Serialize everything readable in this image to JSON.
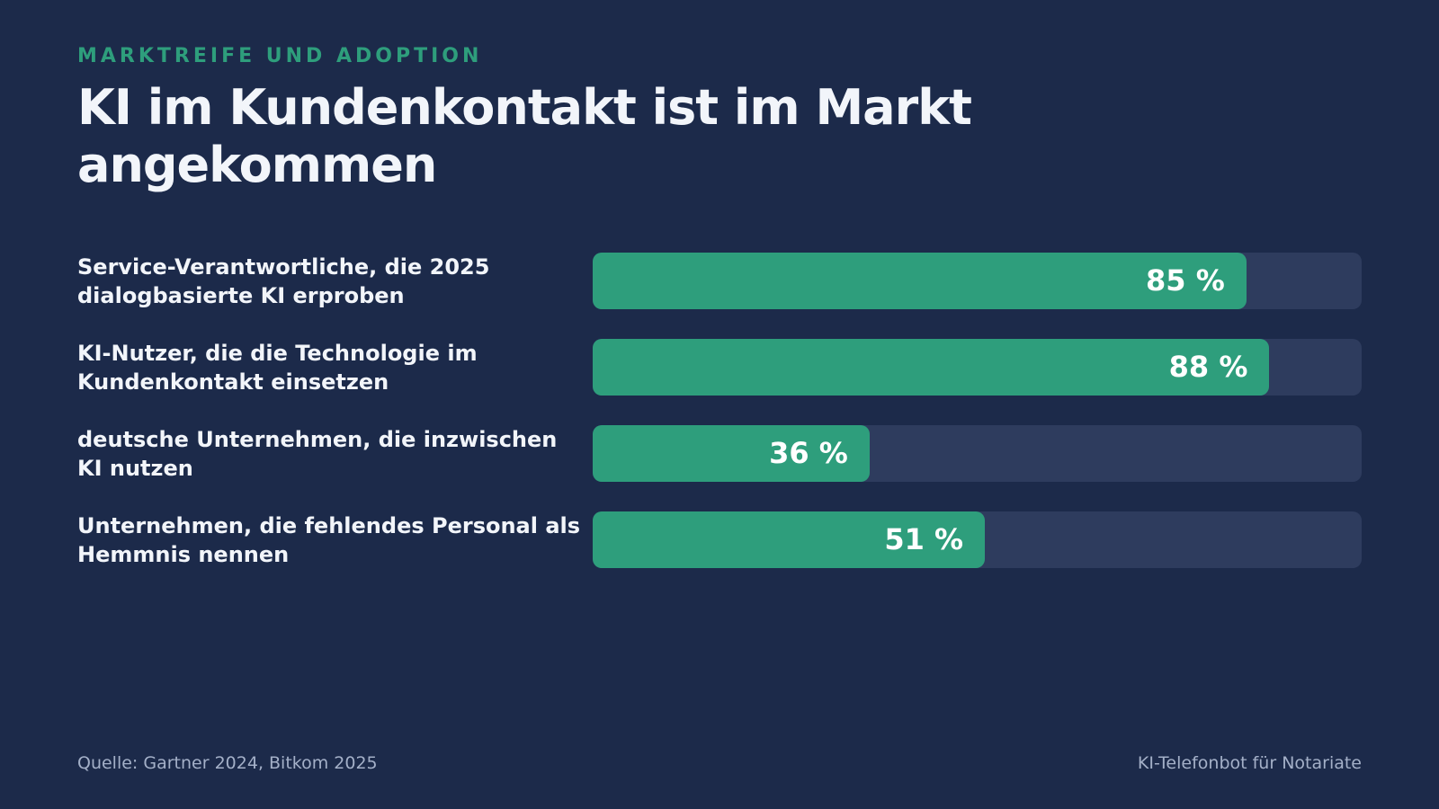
{
  "chart_data": {
    "type": "bar",
    "orientation": "horizontal",
    "kicker": "MARKTREIFE UND ADOPTION",
    "title": "KI im Kundenkontakt ist im Markt angekommen",
    "categories": [
      "Service-Verantwortliche, die 2025 dialogbasierte KI erproben",
      "KI-Nutzer, die die Technologie im Kundenkontakt einsetzen",
      "deutsche Unternehmen, die inzwischen KI nutzen",
      "Unternehmen, die fehlendes Personal als Hemmnis nennen"
    ],
    "values": [
      85,
      88,
      36,
      51
    ],
    "value_labels": [
      "85 %",
      "88 %",
      "36 %",
      "51 %"
    ],
    "color": "#2e9e7c",
    "track_color": "#2e3c5e",
    "xlim": [
      0,
      100
    ]
  },
  "footer": {
    "source": "Quelle: Gartner 2024, Bitkom 2025",
    "brand": "KI-Telefonbot für Notariate"
  }
}
